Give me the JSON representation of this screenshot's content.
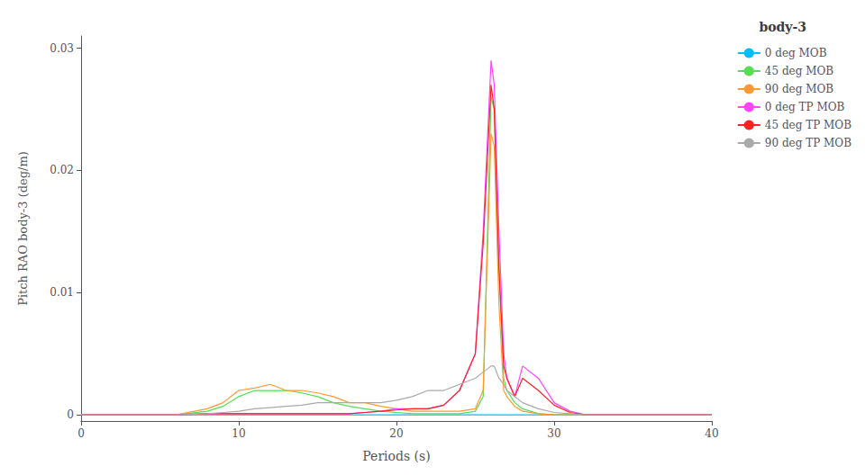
{
  "chart_data": {
    "type": "line",
    "title": "body-3",
    "xlabel": "Periods (s)",
    "ylabel": "Pitch RAO body-3 (deg/m)",
    "xlim": [
      0,
      40
    ],
    "ylim": [
      -0.0005,
      0.031
    ],
    "xticks": [
      0,
      10,
      20,
      30,
      40
    ],
    "yticks": [
      0,
      0.01,
      0.02,
      0.03
    ],
    "grid": false,
    "legend": "upper right",
    "series": [
      {
        "name": "0 deg MOB",
        "color": "#00bfff",
        "x": [
          0,
          2,
          4,
          6,
          7,
          8,
          9,
          10,
          11,
          12,
          13,
          14,
          15,
          16,
          17,
          18,
          19,
          20,
          21,
          22,
          23,
          24,
          25,
          26,
          26.5,
          27,
          27.5,
          28,
          29,
          30,
          31,
          32,
          33,
          35,
          40
        ],
        "values": [
          0,
          0,
          0,
          0,
          0,
          0,
          0,
          0,
          0,
          0,
          0,
          0,
          0,
          0,
          0,
          0,
          0,
          0,
          0,
          0,
          0,
          0,
          0,
          0,
          0,
          0,
          0,
          0,
          0,
          0,
          0,
          0,
          0,
          0,
          0
        ]
      },
      {
        "name": "45 deg MOB",
        "color": "#55dd55",
        "x": [
          0,
          2,
          4,
          6,
          8,
          9,
          10,
          11,
          12,
          13,
          14,
          15,
          16,
          17,
          18,
          19,
          20,
          21,
          22,
          23,
          24,
          25,
          25.5,
          26,
          26.2,
          26.5,
          26.8,
          27,
          27.5,
          28,
          29,
          30,
          31,
          32,
          35,
          40
        ],
        "values": [
          0,
          0,
          0,
          0,
          0.0003,
          0.0007,
          0.0015,
          0.002,
          0.002,
          0.002,
          0.0018,
          0.0015,
          0.001,
          0.0007,
          0.0005,
          0.0003,
          0.0002,
          0.0001,
          0.0001,
          0.0001,
          0.0001,
          0.0003,
          0.0015,
          0.026,
          0.025,
          0.012,
          0.003,
          0.002,
          0.001,
          0.0005,
          0.0001,
          0,
          0,
          0,
          0,
          0
        ]
      },
      {
        "name": "90 deg MOB",
        "color": "#ff9933",
        "x": [
          0,
          2,
          4,
          6,
          8,
          9,
          10,
          11,
          12,
          13,
          14,
          15,
          16,
          17,
          18,
          19,
          20,
          21,
          22,
          23,
          24,
          25,
          25.5,
          26,
          26.2,
          26.5,
          26.8,
          27,
          27.5,
          28,
          29,
          30,
          31,
          32,
          35,
          40
        ],
        "values": [
          0,
          0,
          0,
          0,
          0.0005,
          0.001,
          0.002,
          0.0022,
          0.0025,
          0.002,
          0.002,
          0.0018,
          0.0015,
          0.001,
          0.001,
          0.0007,
          0.0005,
          0.0003,
          0.0003,
          0.0003,
          0.0003,
          0.0005,
          0.002,
          0.023,
          0.022,
          0.009,
          0.002,
          0.0015,
          0.0007,
          0.0003,
          0.0001,
          0,
          0,
          0,
          0,
          0
        ]
      },
      {
        "name": "0 deg TP MOB",
        "color": "#ff44ff",
        "x": [
          0,
          2,
          4,
          6,
          8,
          9,
          10,
          11,
          12,
          13,
          14,
          15,
          16,
          17,
          18,
          19,
          20,
          21,
          22,
          23,
          24,
          25,
          25.5,
          26,
          26.2,
          26.5,
          26.8,
          27,
          27.5,
          28,
          29,
          30,
          31,
          32,
          35,
          40
        ],
        "values": [
          0,
          0,
          0,
          0,
          0.0001,
          0.0001,
          0.0001,
          0.0001,
          0.0001,
          0.0001,
          0.0001,
          0.0001,
          0.0001,
          0.0001,
          0.0002,
          0.0003,
          0.0005,
          0.0005,
          0.0005,
          0.0008,
          0.002,
          0.005,
          0.015,
          0.029,
          0.027,
          0.015,
          0.005,
          0.003,
          0.0015,
          0.004,
          0.003,
          0.001,
          0.0003,
          0,
          0,
          0
        ]
      },
      {
        "name": "45 deg TP MOB",
        "color": "#ff2222",
        "x": [
          0,
          2,
          4,
          6,
          8,
          9,
          10,
          11,
          12,
          13,
          14,
          15,
          16,
          17,
          18,
          19,
          20,
          21,
          22,
          23,
          24,
          25,
          25.5,
          26,
          26.2,
          26.5,
          26.8,
          27,
          27.5,
          28,
          29,
          30,
          31,
          32,
          35,
          40
        ],
        "values": [
          0,
          0,
          0,
          0,
          0.0001,
          0.0001,
          0.0001,
          0.0001,
          0.0001,
          0.0001,
          0.0001,
          0.0001,
          0.0001,
          0.0001,
          0.0002,
          0.0003,
          0.0004,
          0.0005,
          0.0005,
          0.0008,
          0.002,
          0.005,
          0.014,
          0.027,
          0.025,
          0.012,
          0.004,
          0.003,
          0.0015,
          0.003,
          0.002,
          0.0008,
          0.0002,
          0,
          0,
          0
        ]
      },
      {
        "name": "90 deg TP MOB",
        "color": "#aaaaaa",
        "x": [
          0,
          2,
          4,
          6,
          8,
          9,
          10,
          11,
          12,
          13,
          14,
          15,
          16,
          17,
          18,
          19,
          20,
          21,
          22,
          23,
          24,
          25,
          25.5,
          26,
          26.2,
          26.5,
          26.8,
          27,
          27.5,
          28,
          29,
          30,
          31,
          32,
          35,
          40
        ],
        "values": [
          0,
          0,
          0,
          0,
          0.0001,
          0.0002,
          0.0003,
          0.0005,
          0.0006,
          0.0007,
          0.0008,
          0.001,
          0.001,
          0.001,
          0.001,
          0.001,
          0.0012,
          0.0015,
          0.002,
          0.002,
          0.0025,
          0.003,
          0.0035,
          0.004,
          0.004,
          0.003,
          0.0025,
          0.002,
          0.0015,
          0.001,
          0.0005,
          0.0002,
          0.0001,
          0,
          0,
          0
        ]
      }
    ]
  }
}
